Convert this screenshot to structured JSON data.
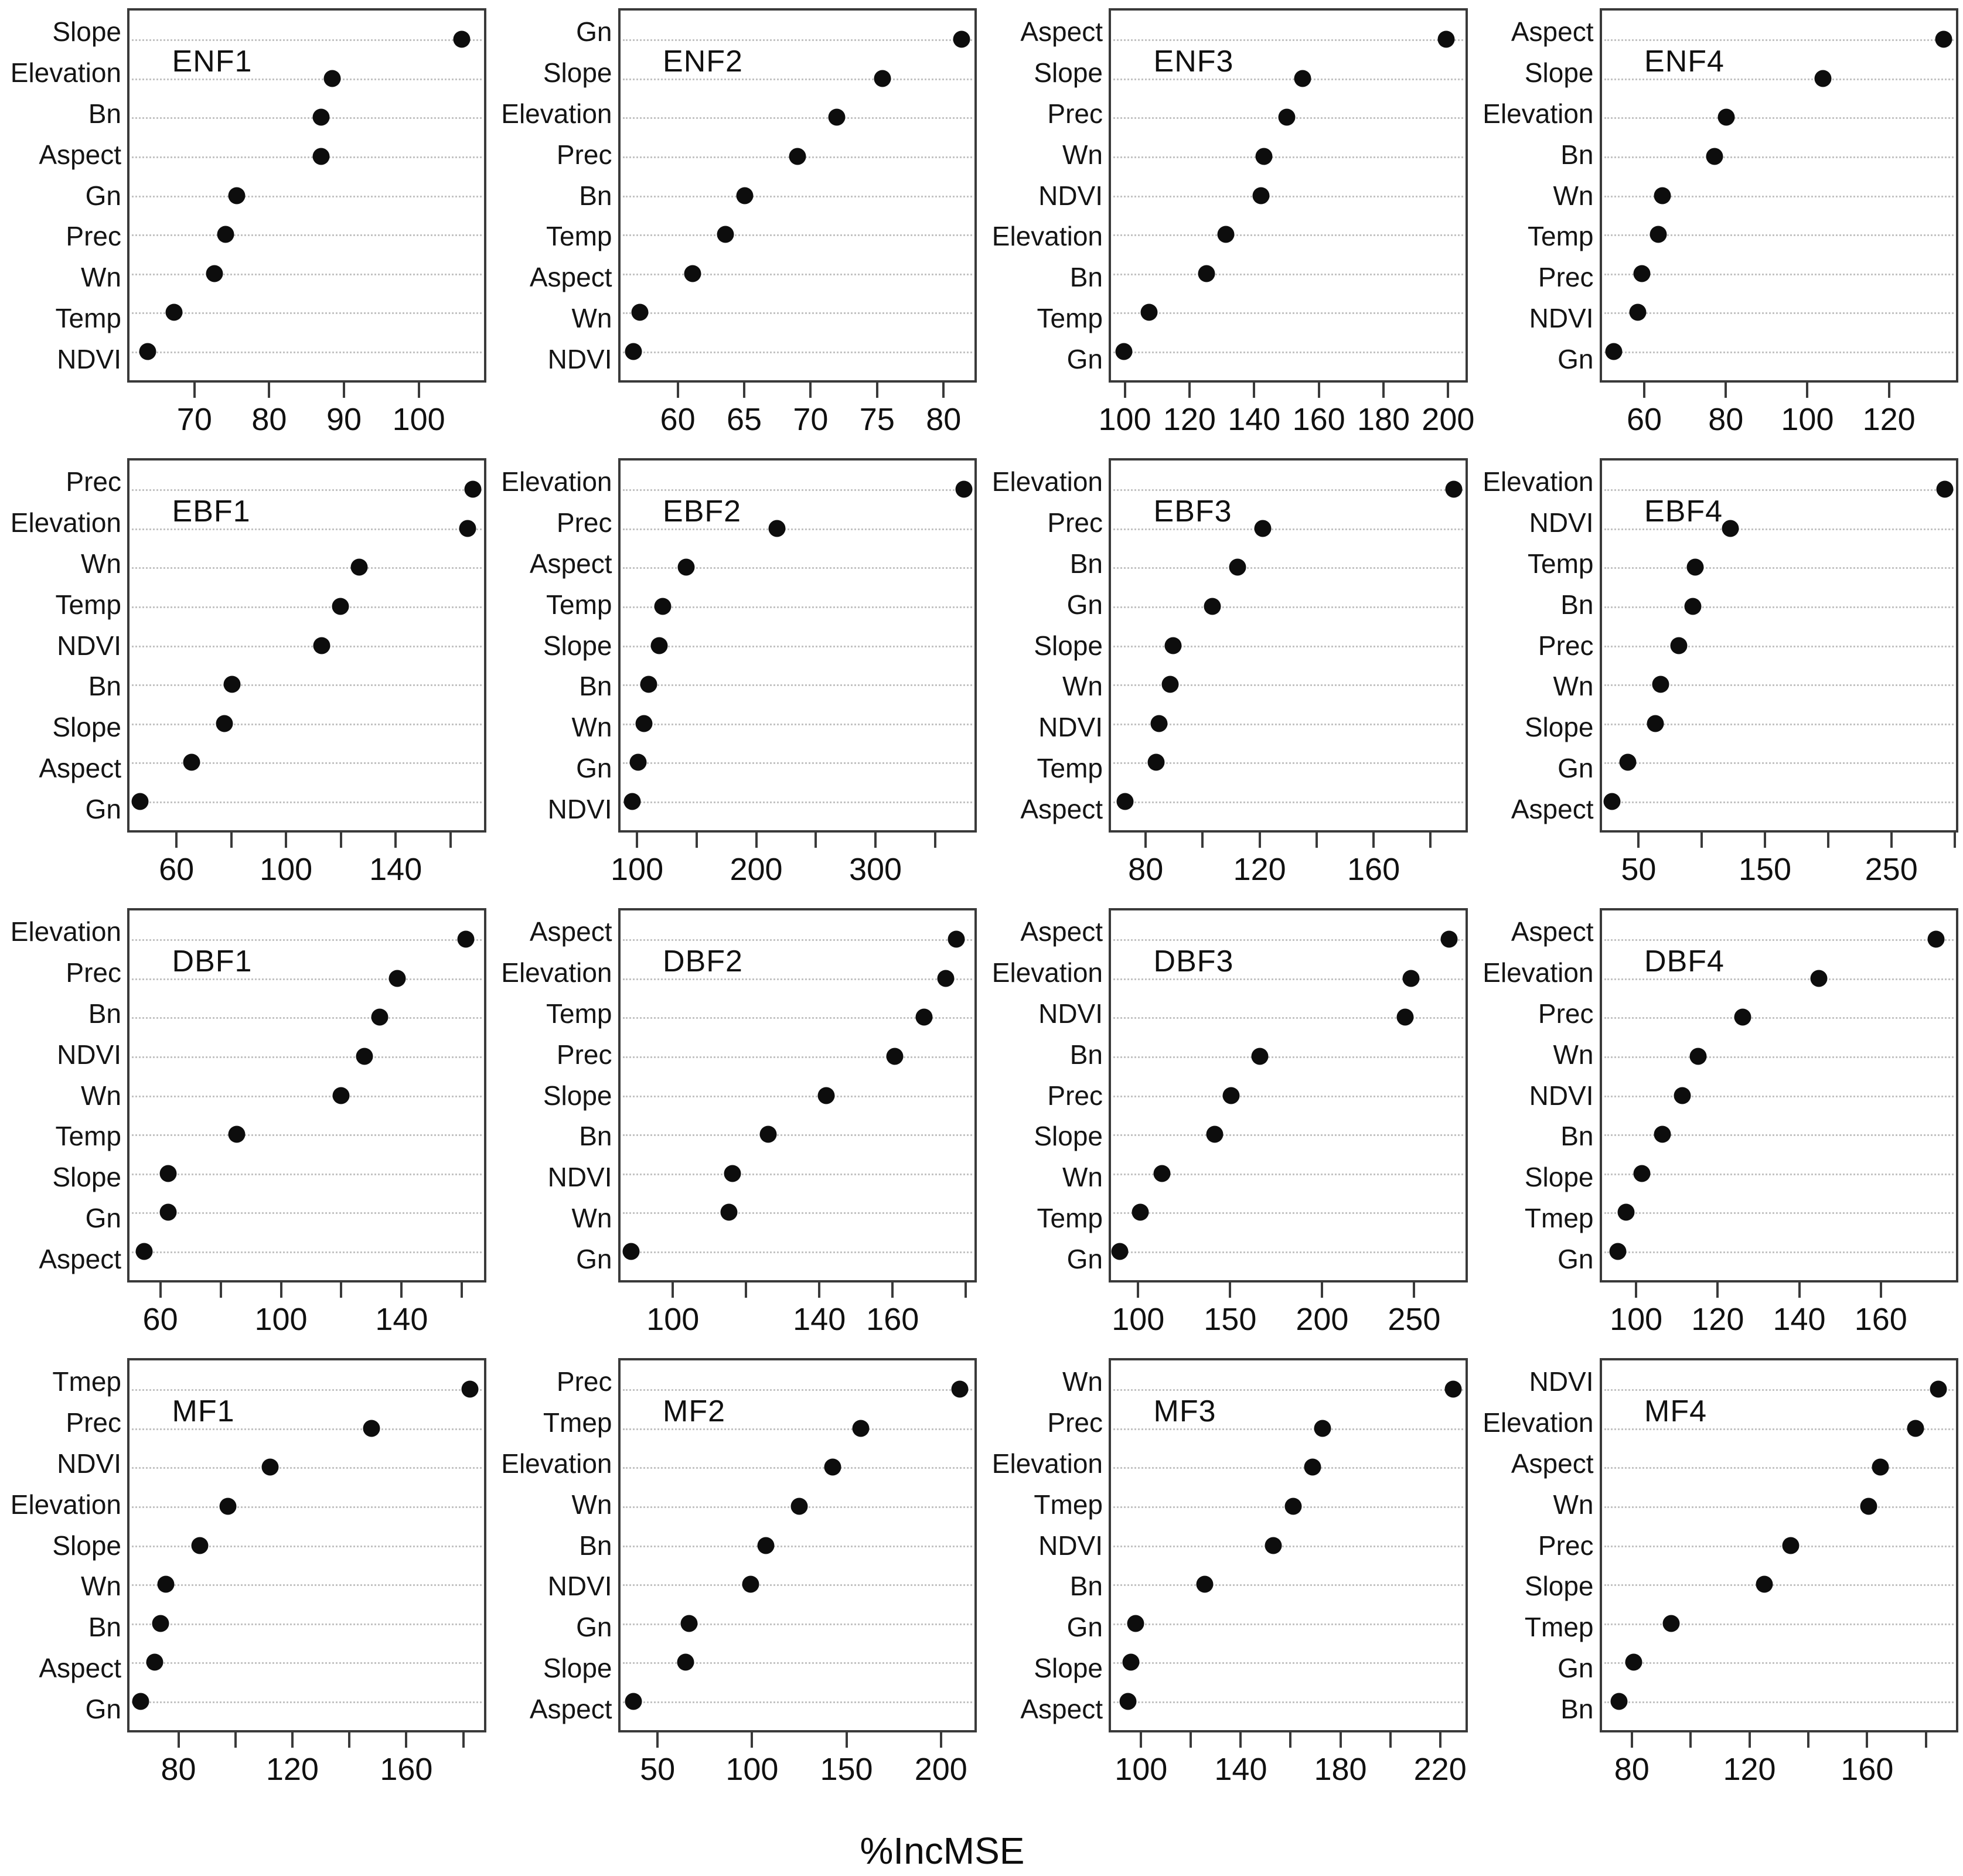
{
  "figure": {
    "xlabel": "%IncMSE",
    "background_color": "#ffffff",
    "dot_color": "#0d0d0d",
    "border_color": "#3a3a3a",
    "gridline_color": "#c3c3c3"
  },
  "chart_data": [
    {
      "type": "scatter",
      "title": "ENF1",
      "categories": [
        "Slope",
        "Elevation",
        "Bn",
        "Aspect",
        "Gn",
        "Prec",
        "Wn",
        "Temp",
        "NDVI"
      ],
      "values": [
        106,
        88.5,
        87,
        87,
        75.5,
        74,
        72.5,
        67,
        63.5
      ],
      "xlim": [
        61,
        109
      ],
      "xticks": [
        {
          "v": 70,
          "l": "70"
        },
        {
          "v": 80,
          "l": "80"
        },
        {
          "v": 90,
          "l": "90"
        },
        {
          "v": 100,
          "l": "100"
        }
      ],
      "xlabel": "%IncMSE",
      "grid": "dotted-horizontal"
    },
    {
      "type": "scatter",
      "title": "ENF2",
      "categories": [
        "Gn",
        "Slope",
        "Elevation",
        "Prec",
        "Bn",
        "Temp",
        "Aspect",
        "Wn",
        "NDVI"
      ],
      "values": [
        81.5,
        75.5,
        72,
        69,
        65,
        63.5,
        61,
        57,
        56.5
      ],
      "xlim": [
        55.5,
        82.5
      ],
      "xticks": [
        {
          "v": 60,
          "l": "60"
        },
        {
          "v": 65,
          "l": "65"
        },
        {
          "v": 70,
          "l": "70"
        },
        {
          "v": 75,
          "l": "75"
        },
        {
          "v": 80,
          "l": "80"
        }
      ],
      "xlabel": "%IncMSE",
      "grid": "dotted-horizontal"
    },
    {
      "type": "scatter",
      "title": "ENF3",
      "categories": [
        "Aspect",
        "Slope",
        "Prec",
        "Wn",
        "NDVI",
        "Elevation",
        "Bn",
        "Temp",
        "Gn"
      ],
      "values": [
        200,
        155,
        150,
        143,
        142,
        131,
        125,
        107,
        99
      ],
      "xlim": [
        95,
        206
      ],
      "xticks": [
        {
          "v": 100,
          "l": "100"
        },
        {
          "v": 120,
          "l": "120"
        },
        {
          "v": 140,
          "l": "140"
        },
        {
          "v": 160,
          "l": "160"
        },
        {
          "v": 180,
          "l": "180"
        },
        {
          "v": 200,
          "l": "200"
        }
      ],
      "xlabel": "%IncMSE",
      "grid": "dotted-horizontal"
    },
    {
      "type": "scatter",
      "title": "ENF4",
      "categories": [
        "Aspect",
        "Slope",
        "Elevation",
        "Bn",
        "Wn",
        "Temp",
        "Prec",
        "NDVI",
        "Gn"
      ],
      "values": [
        134,
        104,
        80,
        77,
        64,
        63,
        59,
        58,
        52
      ],
      "xlim": [
        49,
        137
      ],
      "xticks": [
        {
          "v": 60,
          "l": "60"
        },
        {
          "v": 80,
          "l": "80"
        },
        {
          "v": 100,
          "l": "100"
        },
        {
          "v": 120,
          "l": "120"
        }
      ],
      "xlabel": "%IncMSE",
      "grid": "dotted-horizontal"
    },
    {
      "type": "scatter",
      "title": "EBF1",
      "categories": [
        "Prec",
        "Elevation",
        "Wn",
        "Temp",
        "NDVI",
        "Bn",
        "Slope",
        "Aspect",
        "Gn"
      ],
      "values": [
        169,
        167,
        127,
        120,
        113,
        80,
        77,
        65,
        46
      ],
      "xlim": [
        42,
        173
      ],
      "xticks": [
        {
          "v": 60,
          "l": "60"
        },
        {
          "v": 80,
          "l": ""
        },
        {
          "v": 100,
          "l": "100"
        },
        {
          "v": 120,
          "l": ""
        },
        {
          "v": 140,
          "l": "140"
        },
        {
          "v": 160,
          "l": ""
        }
      ],
      "xlabel": "%IncMSE",
      "grid": "dotted-horizontal"
    },
    {
      "type": "scatter",
      "title": "EBF2",
      "categories": [
        "Elevation",
        "Prec",
        "Aspect",
        "Temp",
        "Slope",
        "Bn",
        "Wn",
        "Gn",
        "NDVI"
      ],
      "values": [
        376,
        217,
        140,
        120,
        117,
        108,
        104,
        99,
        94
      ],
      "xlim": [
        84,
        385
      ],
      "xticks": [
        {
          "v": 100,
          "l": "100"
        },
        {
          "v": 150,
          "l": ""
        },
        {
          "v": 200,
          "l": "200"
        },
        {
          "v": 250,
          "l": ""
        },
        {
          "v": 300,
          "l": "300"
        },
        {
          "v": 350,
          "l": ""
        }
      ],
      "xlabel": "%IncMSE",
      "grid": "dotted-horizontal"
    },
    {
      "type": "scatter",
      "title": "EBF3",
      "categories": [
        "Elevation",
        "Prec",
        "Bn",
        "Gn",
        "Slope",
        "Wn",
        "NDVI",
        "Temp",
        "Aspect"
      ],
      "values": [
        189,
        121,
        112,
        103,
        89,
        88,
        84,
        83,
        72
      ],
      "xlim": [
        67,
        193
      ],
      "xticks": [
        {
          "v": 80,
          "l": "80"
        },
        {
          "v": 100,
          "l": ""
        },
        {
          "v": 120,
          "l": "120"
        },
        {
          "v": 140,
          "l": ""
        },
        {
          "v": 160,
          "l": "160"
        },
        {
          "v": 180,
          "l": ""
        }
      ],
      "xlabel": "%IncMSE",
      "grid": "dotted-horizontal"
    },
    {
      "type": "scatter",
      "title": "EBF4",
      "categories": [
        "Elevation",
        "NDVI",
        "Temp",
        "Bn",
        "Prec",
        "Wn",
        "Slope",
        "Gn",
        "Aspect"
      ],
      "values": [
        294,
        122,
        94,
        92,
        81,
        66,
        62,
        40,
        27
      ],
      "xlim": [
        19,
        303
      ],
      "xticks": [
        {
          "v": 50,
          "l": "50"
        },
        {
          "v": 100,
          "l": ""
        },
        {
          "v": 150,
          "l": "150"
        },
        {
          "v": 200,
          "l": ""
        },
        {
          "v": 250,
          "l": "250"
        },
        {
          "v": 300,
          "l": ""
        }
      ],
      "xlabel": "%IncMSE",
      "grid": "dotted-horizontal"
    },
    {
      "type": "scatter",
      "title": "DBF1",
      "categories": [
        "Elevation",
        "Prec",
        "Bn",
        "NDVI",
        "Wn",
        "Temp",
        "Slope",
        "Gn",
        "Aspect"
      ],
      "values": [
        162,
        139,
        133,
        128,
        120,
        85,
        62,
        62,
        54
      ],
      "xlim": [
        49,
        168
      ],
      "xticks": [
        {
          "v": 60,
          "l": "60"
        },
        {
          "v": 80,
          "l": ""
        },
        {
          "v": 100,
          "l": "100"
        },
        {
          "v": 120,
          "l": ""
        },
        {
          "v": 140,
          "l": "140"
        },
        {
          "v": 160,
          "l": ""
        }
      ],
      "xlabel": "%IncMSE",
      "grid": "dotted-horizontal"
    },
    {
      "type": "scatter",
      "title": "DBF2",
      "categories": [
        "Aspect",
        "Elevation",
        "Temp",
        "Prec",
        "Slope",
        "Bn",
        "NDVI",
        "Wn",
        "Gn"
      ],
      "values": [
        178,
        175,
        169,
        161,
        142,
        126,
        116,
        115,
        88
      ],
      "xlim": [
        85,
        183
      ],
      "xticks": [
        {
          "v": 100,
          "l": "100"
        },
        {
          "v": 120,
          "l": ""
        },
        {
          "v": 140,
          "l": "140"
        },
        {
          "v": 160,
          "l": "160"
        },
        {
          "v": 180,
          "l": ""
        }
      ],
      "xlabel": "%IncMSE",
      "grid": "dotted-horizontal"
    },
    {
      "type": "scatter",
      "title": "DBF3",
      "categories": [
        "Aspect",
        "Elevation",
        "NDVI",
        "Bn",
        "Prec",
        "Slope",
        "Wn",
        "Temp",
        "Gn"
      ],
      "values": [
        270,
        249,
        246,
        166,
        150,
        141,
        112,
        100,
        89
      ],
      "xlim": [
        84,
        279
      ],
      "xticks": [
        {
          "v": 100,
          "l": "100"
        },
        {
          "v": 150,
          "l": "150"
        },
        {
          "v": 200,
          "l": "200"
        },
        {
          "v": 250,
          "l": "250"
        }
      ],
      "xlabel": "%IncMSE",
      "grid": "dotted-horizontal"
    },
    {
      "type": "scatter",
      "title": "DBF4",
      "categories": [
        "Aspect",
        "Elevation",
        "Prec",
        "Wn",
        "NDVI",
        "Bn",
        "Slope",
        "Tmep",
        "Gn"
      ],
      "values": [
        174,
        145,
        126,
        115,
        111,
        106,
        101,
        97,
        95
      ],
      "xlim": [
        91,
        179
      ],
      "xticks": [
        {
          "v": 100,
          "l": "100"
        },
        {
          "v": 120,
          "l": "120"
        },
        {
          "v": 140,
          "l": "140"
        },
        {
          "v": 160,
          "l": "160"
        }
      ],
      "xlabel": "%IncMSE",
      "grid": "dotted-horizontal"
    },
    {
      "type": "scatter",
      "title": "MF1",
      "categories": [
        "Tmep",
        "Prec",
        "NDVI",
        "Elevation",
        "Slope",
        "Wn",
        "Bn",
        "Aspect",
        "Gn"
      ],
      "values": [
        183,
        148,
        112,
        97,
        87,
        75,
        73,
        71,
        66
      ],
      "xlim": [
        62,
        188
      ],
      "xticks": [
        {
          "v": 80,
          "l": "80"
        },
        {
          "v": 100,
          "l": ""
        },
        {
          "v": 120,
          "l": "120"
        },
        {
          "v": 140,
          "l": ""
        },
        {
          "v": 160,
          "l": "160"
        },
        {
          "v": 180,
          "l": ""
        }
      ],
      "xlabel": "%IncMSE",
      "grid": "dotted-horizontal"
    },
    {
      "type": "scatter",
      "title": "MF2",
      "categories": [
        "Prec",
        "Tmep",
        "Elevation",
        "Wn",
        "Bn",
        "NDVI",
        "Gn",
        "Slope",
        "Aspect"
      ],
      "values": [
        211,
        158,
        143,
        125,
        107,
        99,
        66,
        64,
        36
      ],
      "xlim": [
        29,
        219
      ],
      "xticks": [
        {
          "v": 50,
          "l": "50"
        },
        {
          "v": 100,
          "l": "100"
        },
        {
          "v": 150,
          "l": "150"
        },
        {
          "v": 200,
          "l": "200"
        }
      ],
      "xlabel": "%IncMSE",
      "grid": "dotted-horizontal"
    },
    {
      "type": "scatter",
      "title": "MF3",
      "categories": [
        "Wn",
        "Prec",
        "Elevation",
        "Tmep",
        "NDVI",
        "Bn",
        "Gn",
        "Slope",
        "Aspect"
      ],
      "values": [
        226,
        173,
        169,
        161,
        153,
        125,
        97,
        95,
        94
      ],
      "xlim": [
        87,
        231
      ],
      "xticks": [
        {
          "v": 100,
          "l": "100"
        },
        {
          "v": 120,
          "l": ""
        },
        {
          "v": 140,
          "l": "140"
        },
        {
          "v": 160,
          "l": ""
        },
        {
          "v": 180,
          "l": "180"
        },
        {
          "v": 200,
          "l": ""
        },
        {
          "v": 220,
          "l": "220"
        }
      ],
      "xlabel": "%IncMSE",
      "grid": "dotted-horizontal"
    },
    {
      "type": "scatter",
      "title": "MF4",
      "categories": [
        "NDVI",
        "Elevation",
        "Aspect",
        "Wn",
        "Prec",
        "Slope",
        "Tmep",
        "Gn",
        "Bn"
      ],
      "values": [
        185,
        177,
        165,
        161,
        134,
        125,
        93,
        80,
        75
      ],
      "xlim": [
        69,
        191
      ],
      "xticks": [
        {
          "v": 80,
          "l": "80"
        },
        {
          "v": 100,
          "l": ""
        },
        {
          "v": 120,
          "l": "120"
        },
        {
          "v": 140,
          "l": ""
        },
        {
          "v": 160,
          "l": "160"
        },
        {
          "v": 180,
          "l": ""
        }
      ],
      "xlabel": "%IncMSE",
      "grid": "dotted-horizontal"
    }
  ]
}
